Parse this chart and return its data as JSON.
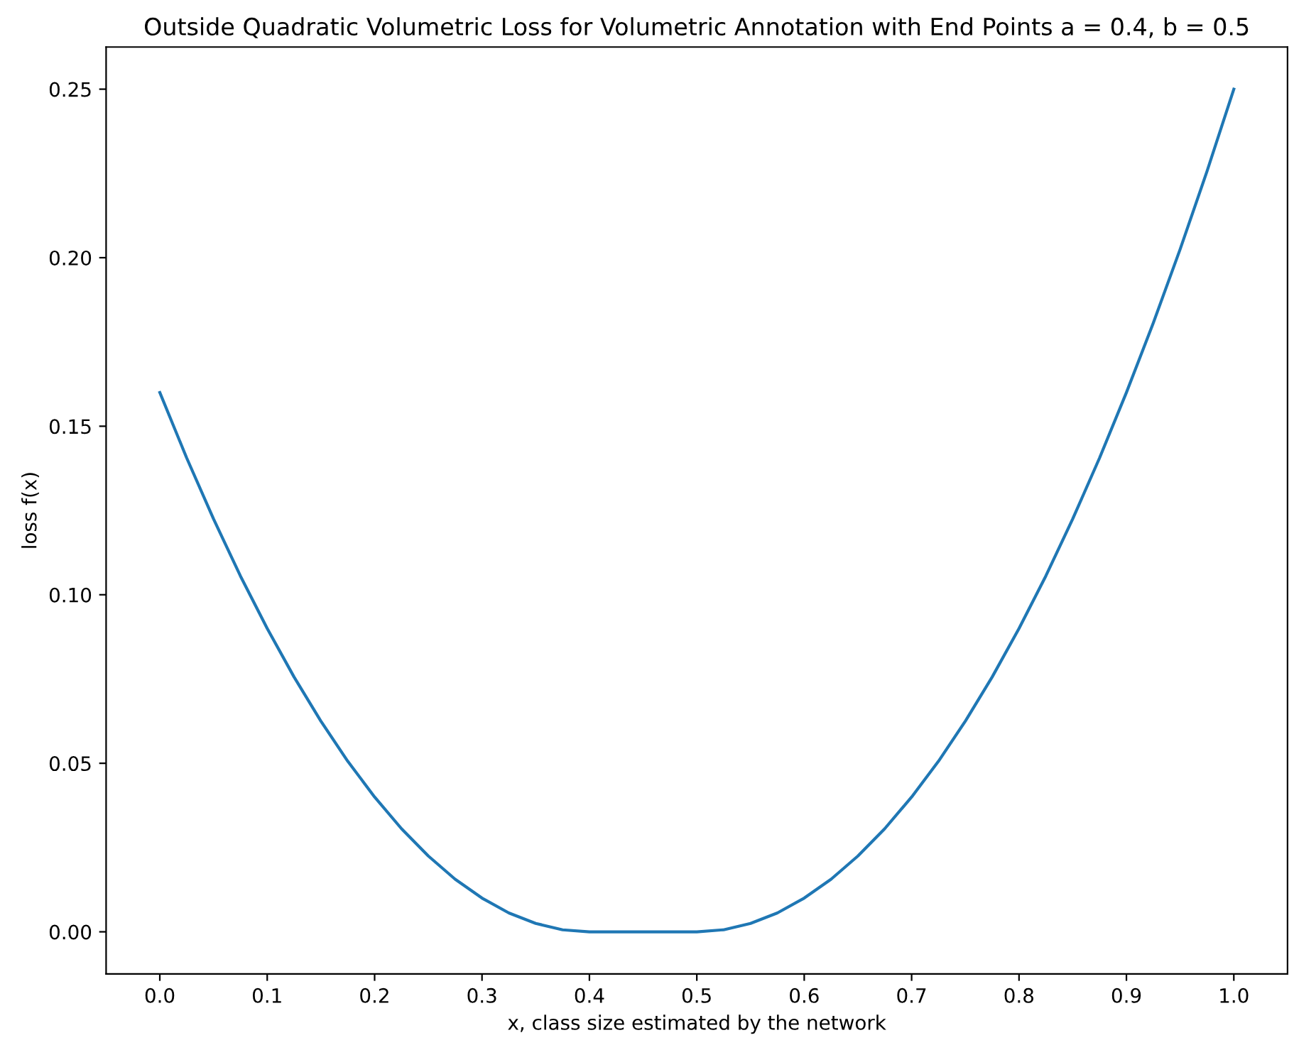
{
  "chart_data": {
    "type": "line",
    "title": "Outside Quadratic Volumetric Loss for Volumetric Annotation with End Points a = 0.4, b = 0.5",
    "xlabel": "x, class size estimated by the network",
    "ylabel": "loss f(x)",
    "x": [
      0,
      0.025,
      0.05,
      0.075,
      0.1,
      0.125,
      0.15,
      0.175,
      0.2,
      0.225,
      0.25,
      0.275,
      0.3,
      0.325,
      0.35,
      0.375,
      0.4,
      0.45,
      0.5,
      0.525,
      0.55,
      0.575,
      0.6,
      0.625,
      0.65,
      0.675,
      0.7,
      0.725,
      0.75,
      0.775,
      0.8,
      0.825,
      0.85,
      0.875,
      0.9,
      0.925,
      0.95,
      0.975,
      1.0
    ],
    "series": [
      {
        "color": "#1f77b4",
        "values": [
          0.16,
          0.1406,
          0.1225,
          0.1056,
          0.09,
          0.0756,
          0.0625,
          0.0506,
          0.04,
          0.0306,
          0.0225,
          0.0156,
          0.01,
          0.0056,
          0.0025,
          0.0006,
          0,
          0,
          0,
          0.0006,
          0.0025,
          0.0056,
          0.01,
          0.0156,
          0.0225,
          0.0306,
          0.04,
          0.0506,
          0.0625,
          0.0756,
          0.09,
          0.1056,
          0.1225,
          0.1406,
          0.16,
          0.1806,
          0.2025,
          0.2256,
          0.25
        ]
      }
    ],
    "xlim": [
      -0.05,
      1.05
    ],
    "ylim": [
      -0.0125,
      0.2625
    ],
    "xticks": [
      {
        "value": 0,
        "label": "0.0"
      },
      0.1,
      0.2,
      0.3,
      0.4,
      0.5,
      0.6,
      0.7,
      0.8,
      0.9,
      {
        "value": 1,
        "label": "1.0"
      }
    ],
    "yticks": [
      {
        "value": 0,
        "label": "0.00"
      },
      0.05,
      {
        "value": 0.1,
        "label": "0.10"
      },
      0.15,
      {
        "value": 0.2,
        "label": "0.20"
      },
      0.25
    ],
    "grid": false,
    "legend": false,
    "marker": "none",
    "line_style": "solid"
  }
}
